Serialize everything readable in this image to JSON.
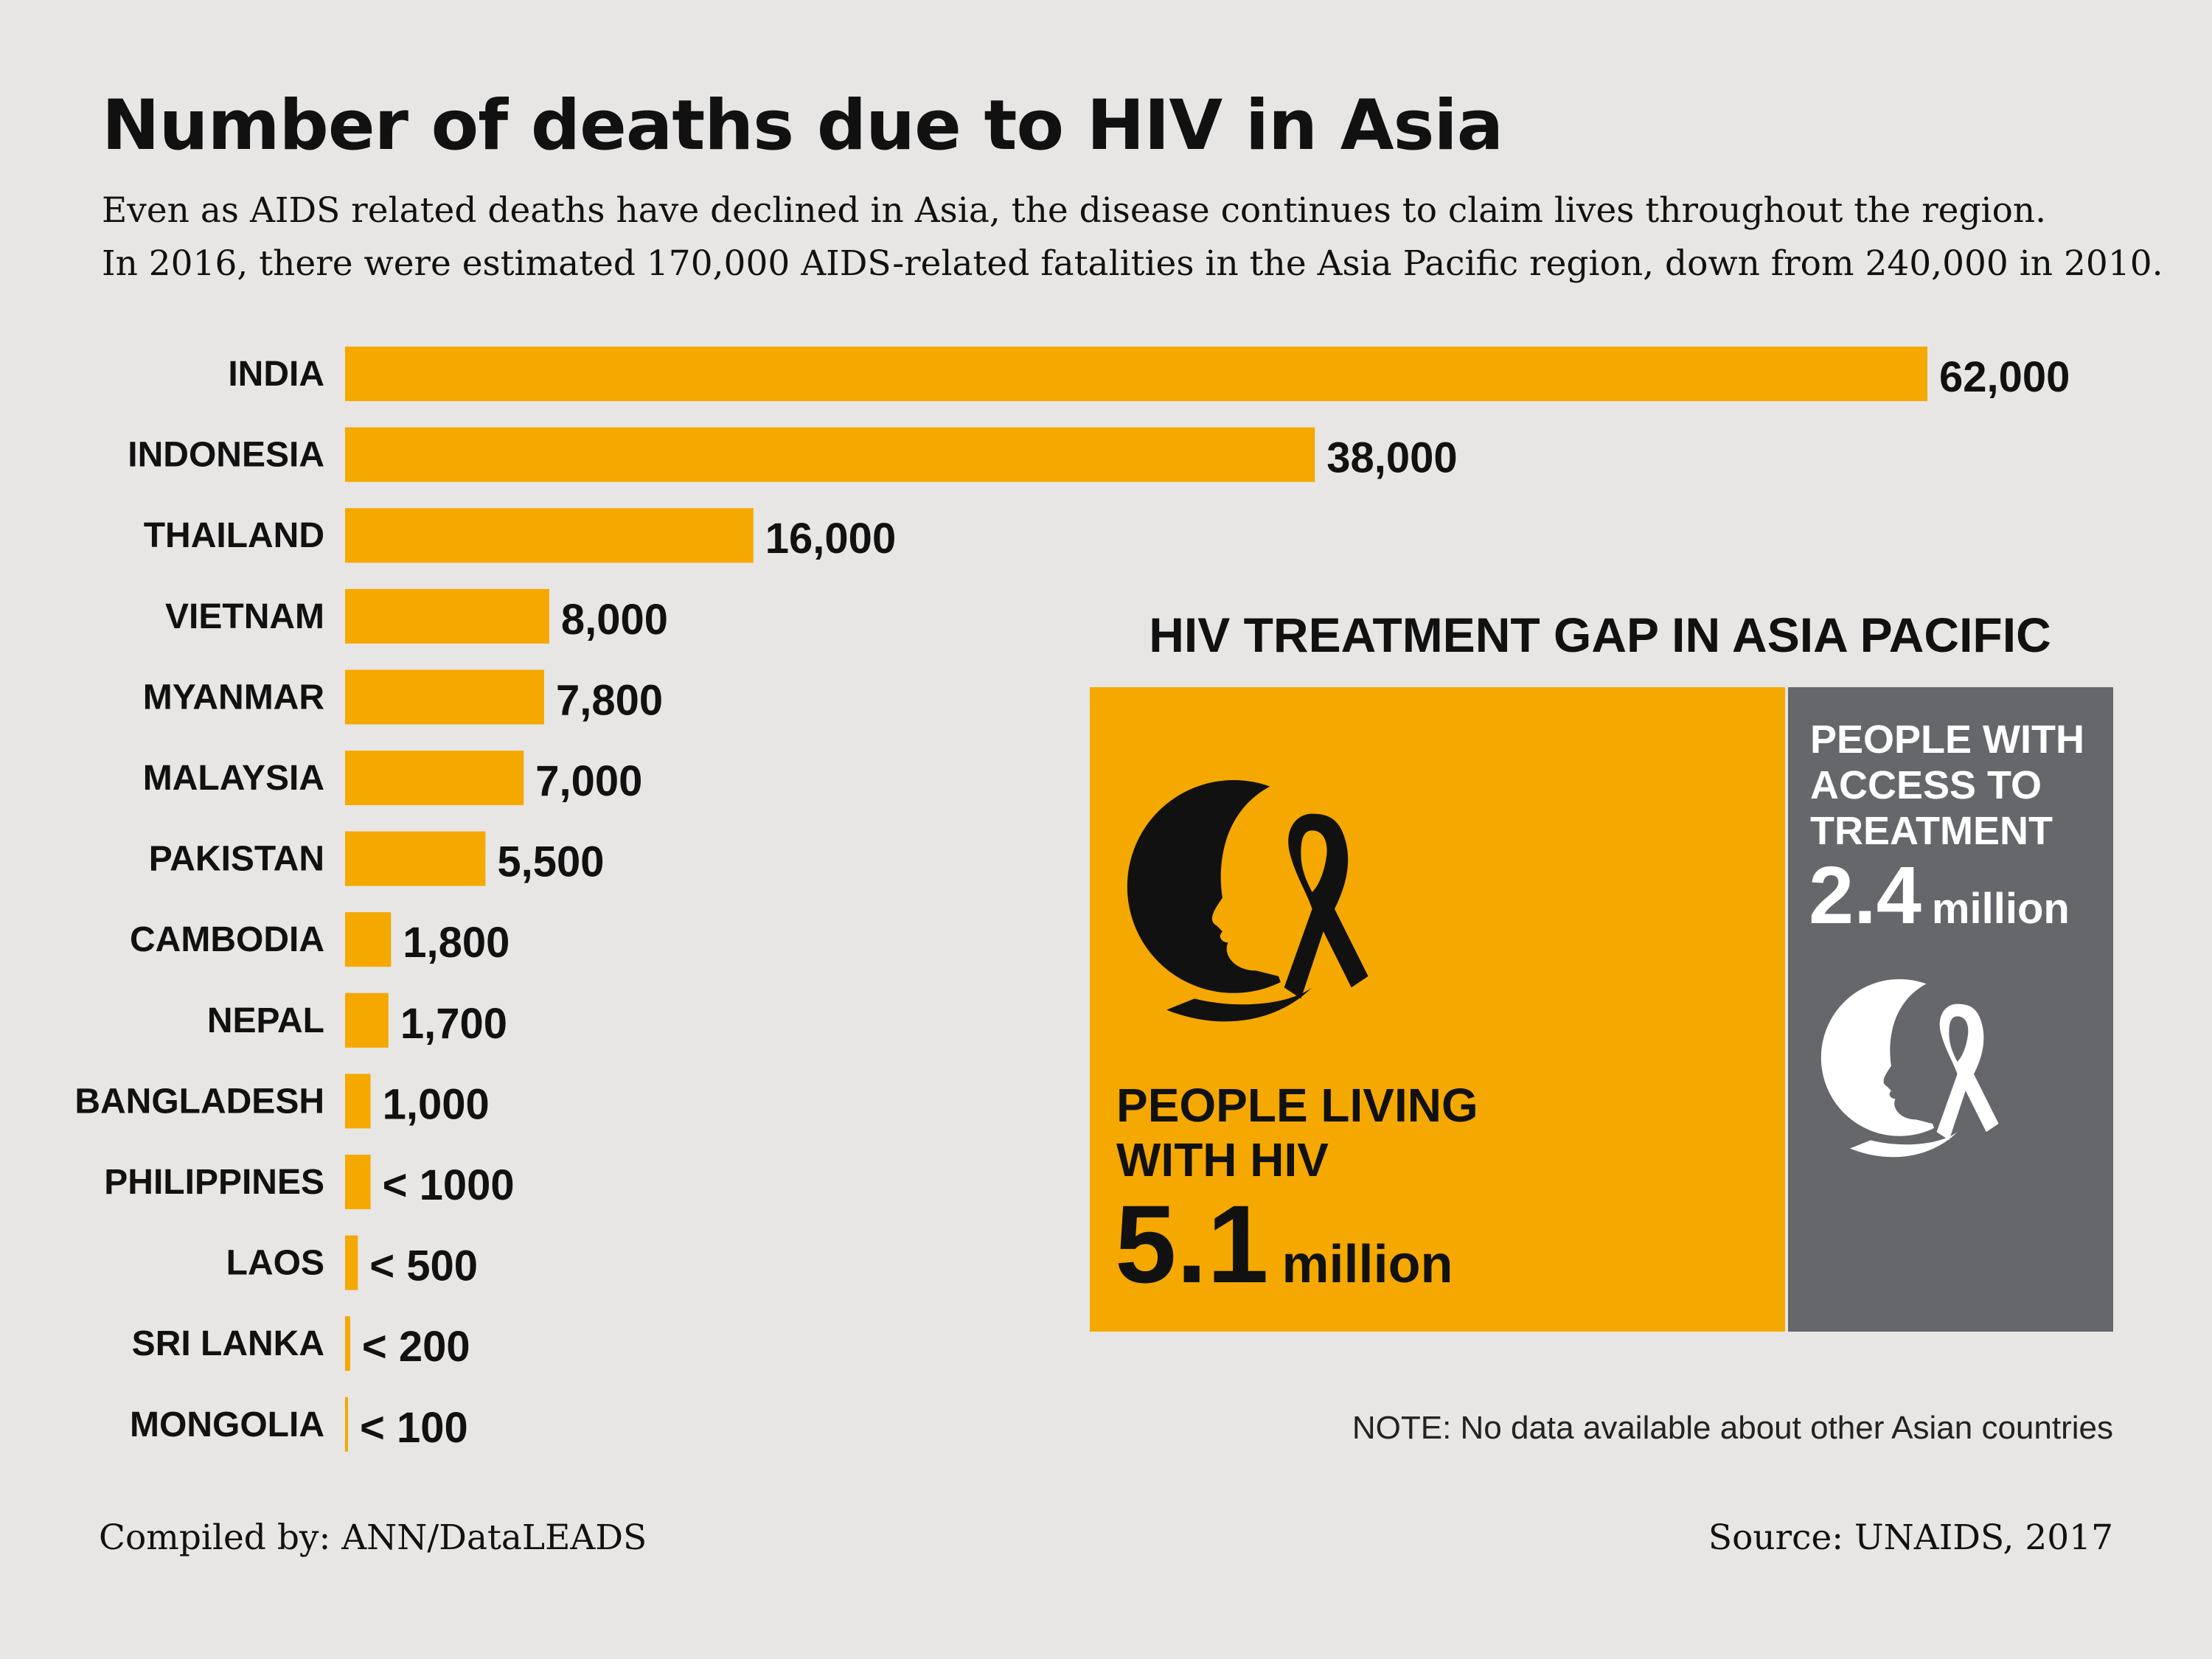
{
  "header": {
    "title": "Number of deaths due to HIV in Asia",
    "subtitle_line1": "Even as AIDS related deaths have declined in Asia, the disease continues to claim lives throughout the region.",
    "subtitle_line2": "In 2016, there were estimated 170,000 AIDS-related fatalities in the Asia Pacific region, down from 240,000 in 2010."
  },
  "chart_data": {
    "type": "bar",
    "orientation": "horizontal",
    "title": "Number of deaths due to HIV in Asia",
    "categories": [
      "INDIA",
      "INDONESIA",
      "THAILAND",
      "VIETNAM",
      "MYANMAR",
      "MALAYSIA",
      "PAKISTAN",
      "CAMBODIA",
      "NEPAL",
      "BANGLADESH",
      "PHILIPPINES",
      "LAOS",
      "SRI LANKA",
      "MONGOLIA"
    ],
    "values": [
      62000,
      38000,
      16000,
      8000,
      7800,
      7000,
      5500,
      1800,
      1700,
      1000,
      1000,
      500,
      200,
      100
    ],
    "value_labels": [
      "62,000",
      "38,000",
      "16,000",
      "8,000",
      "7,800",
      "7,000",
      "5,500",
      "1,800",
      "1,700",
      "1,000",
      "< 1000",
      "< 500",
      "< 200",
      "< 100"
    ],
    "xlim": [
      0,
      62000
    ],
    "bar_color": "#f5a800"
  },
  "treatment_gap": {
    "title": "HIV TREATMENT GAP IN ASIA PACIFIC",
    "living": {
      "label_line1": "PEOPLE LIVING",
      "label_line2": "WITH HIV",
      "value": "5.1",
      "unit": "million",
      "color": "#f5a800"
    },
    "access": {
      "label_line1": "PEOPLE WITH",
      "label_line2": "ACCESS TO",
      "label_line3": "TREATMENT",
      "value": "2.4",
      "unit": "million",
      "color": "#66676b"
    }
  },
  "footer": {
    "note": "NOTE: No data available about other Asian countries",
    "compiled": "Compiled by: ANN/DataLEADS",
    "source": "Source: UNAIDS, 2017"
  }
}
